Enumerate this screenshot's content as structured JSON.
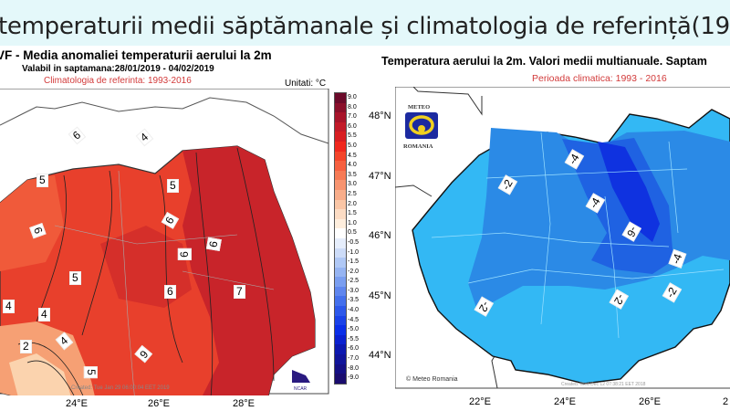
{
  "slide_title": "temperaturii medii săptămanale și climatologia de referință(19",
  "left_map": {
    "title": "VF - Media anomaliei temperaturii aerului la 2m",
    "subtitle": "Valabil in saptamana:28/01/2019 - 04/02/2019",
    "climatology": "Climatologia de referinta: 1993-2016",
    "units": "Unitati: °C",
    "created": "Created: Tue Jan 29 06:00:04 EET 2019",
    "logo": "NCAR",
    "lon_ticks": [
      "24°E",
      "26°E",
      "28°E"
    ],
    "contour_labels": [
      "6",
      "4",
      "5",
      "5",
      "6",
      "6",
      "6",
      "6",
      "5",
      "6",
      "7",
      "4",
      "4",
      "4",
      "2",
      "5",
      "6"
    ],
    "colorbar_labels": [
      "9.0",
      "8.0",
      "7.0",
      "6.0",
      "5.5",
      "5.0",
      "4.5",
      "4.0",
      "3.5",
      "3.0",
      "2.5",
      "2.0",
      "1.5",
      "1.0",
      "0.5",
      "-0.5",
      "-1.0",
      "-1.5",
      "-2.0",
      "-2.5",
      "-3.0",
      "-3.5",
      "-4.0",
      "-4.5",
      "-5.0",
      "-5.5",
      "-6.0",
      "-7.0",
      "-8.0",
      "-9.0"
    ],
    "colorbar_colors": [
      "#6b0a2a",
      "#8a0f2a",
      "#a8142a",
      "#c21a28",
      "#d81e22",
      "#f0281e",
      "#f4452a",
      "#f66040",
      "#f67a55",
      "#f79470",
      "#f8ad8a",
      "#fac6a6",
      "#fcdcc4",
      "#feeedd",
      "#ffffff",
      "#e6eefc",
      "#cddcf8",
      "#b0c8f5",
      "#96b4f2",
      "#7a9ef0",
      "#5f86ee",
      "#4470ec",
      "#2d58ea",
      "#1a42e8",
      "#0a2ee8",
      "#0a20d0",
      "#0c18b0",
      "#10149a",
      "#140f84",
      "#1a0c6e"
    ]
  },
  "right_map": {
    "title": "Temperatura aerului la 2m. Valori medii multianuale. Saptam",
    "period": "Perioada climatica: 1993 - 2016",
    "logo_top": "METEO",
    "logo_bottom": "ROMANIA",
    "copyright": "© Meteo Romania",
    "created": "Created: Wed Dec 12 07:38:21 EET 2018",
    "lat_ticks": [
      "48°N",
      "47°N",
      "46°N",
      "45°N",
      "44°N"
    ],
    "lon_ticks": [
      "22°E",
      "24°E",
      "26°E",
      "2"
    ],
    "contour_labels": [
      "-4",
      "-2",
      "-4",
      "-6",
      "-4",
      "-2",
      "-2",
      "-2"
    ]
  }
}
